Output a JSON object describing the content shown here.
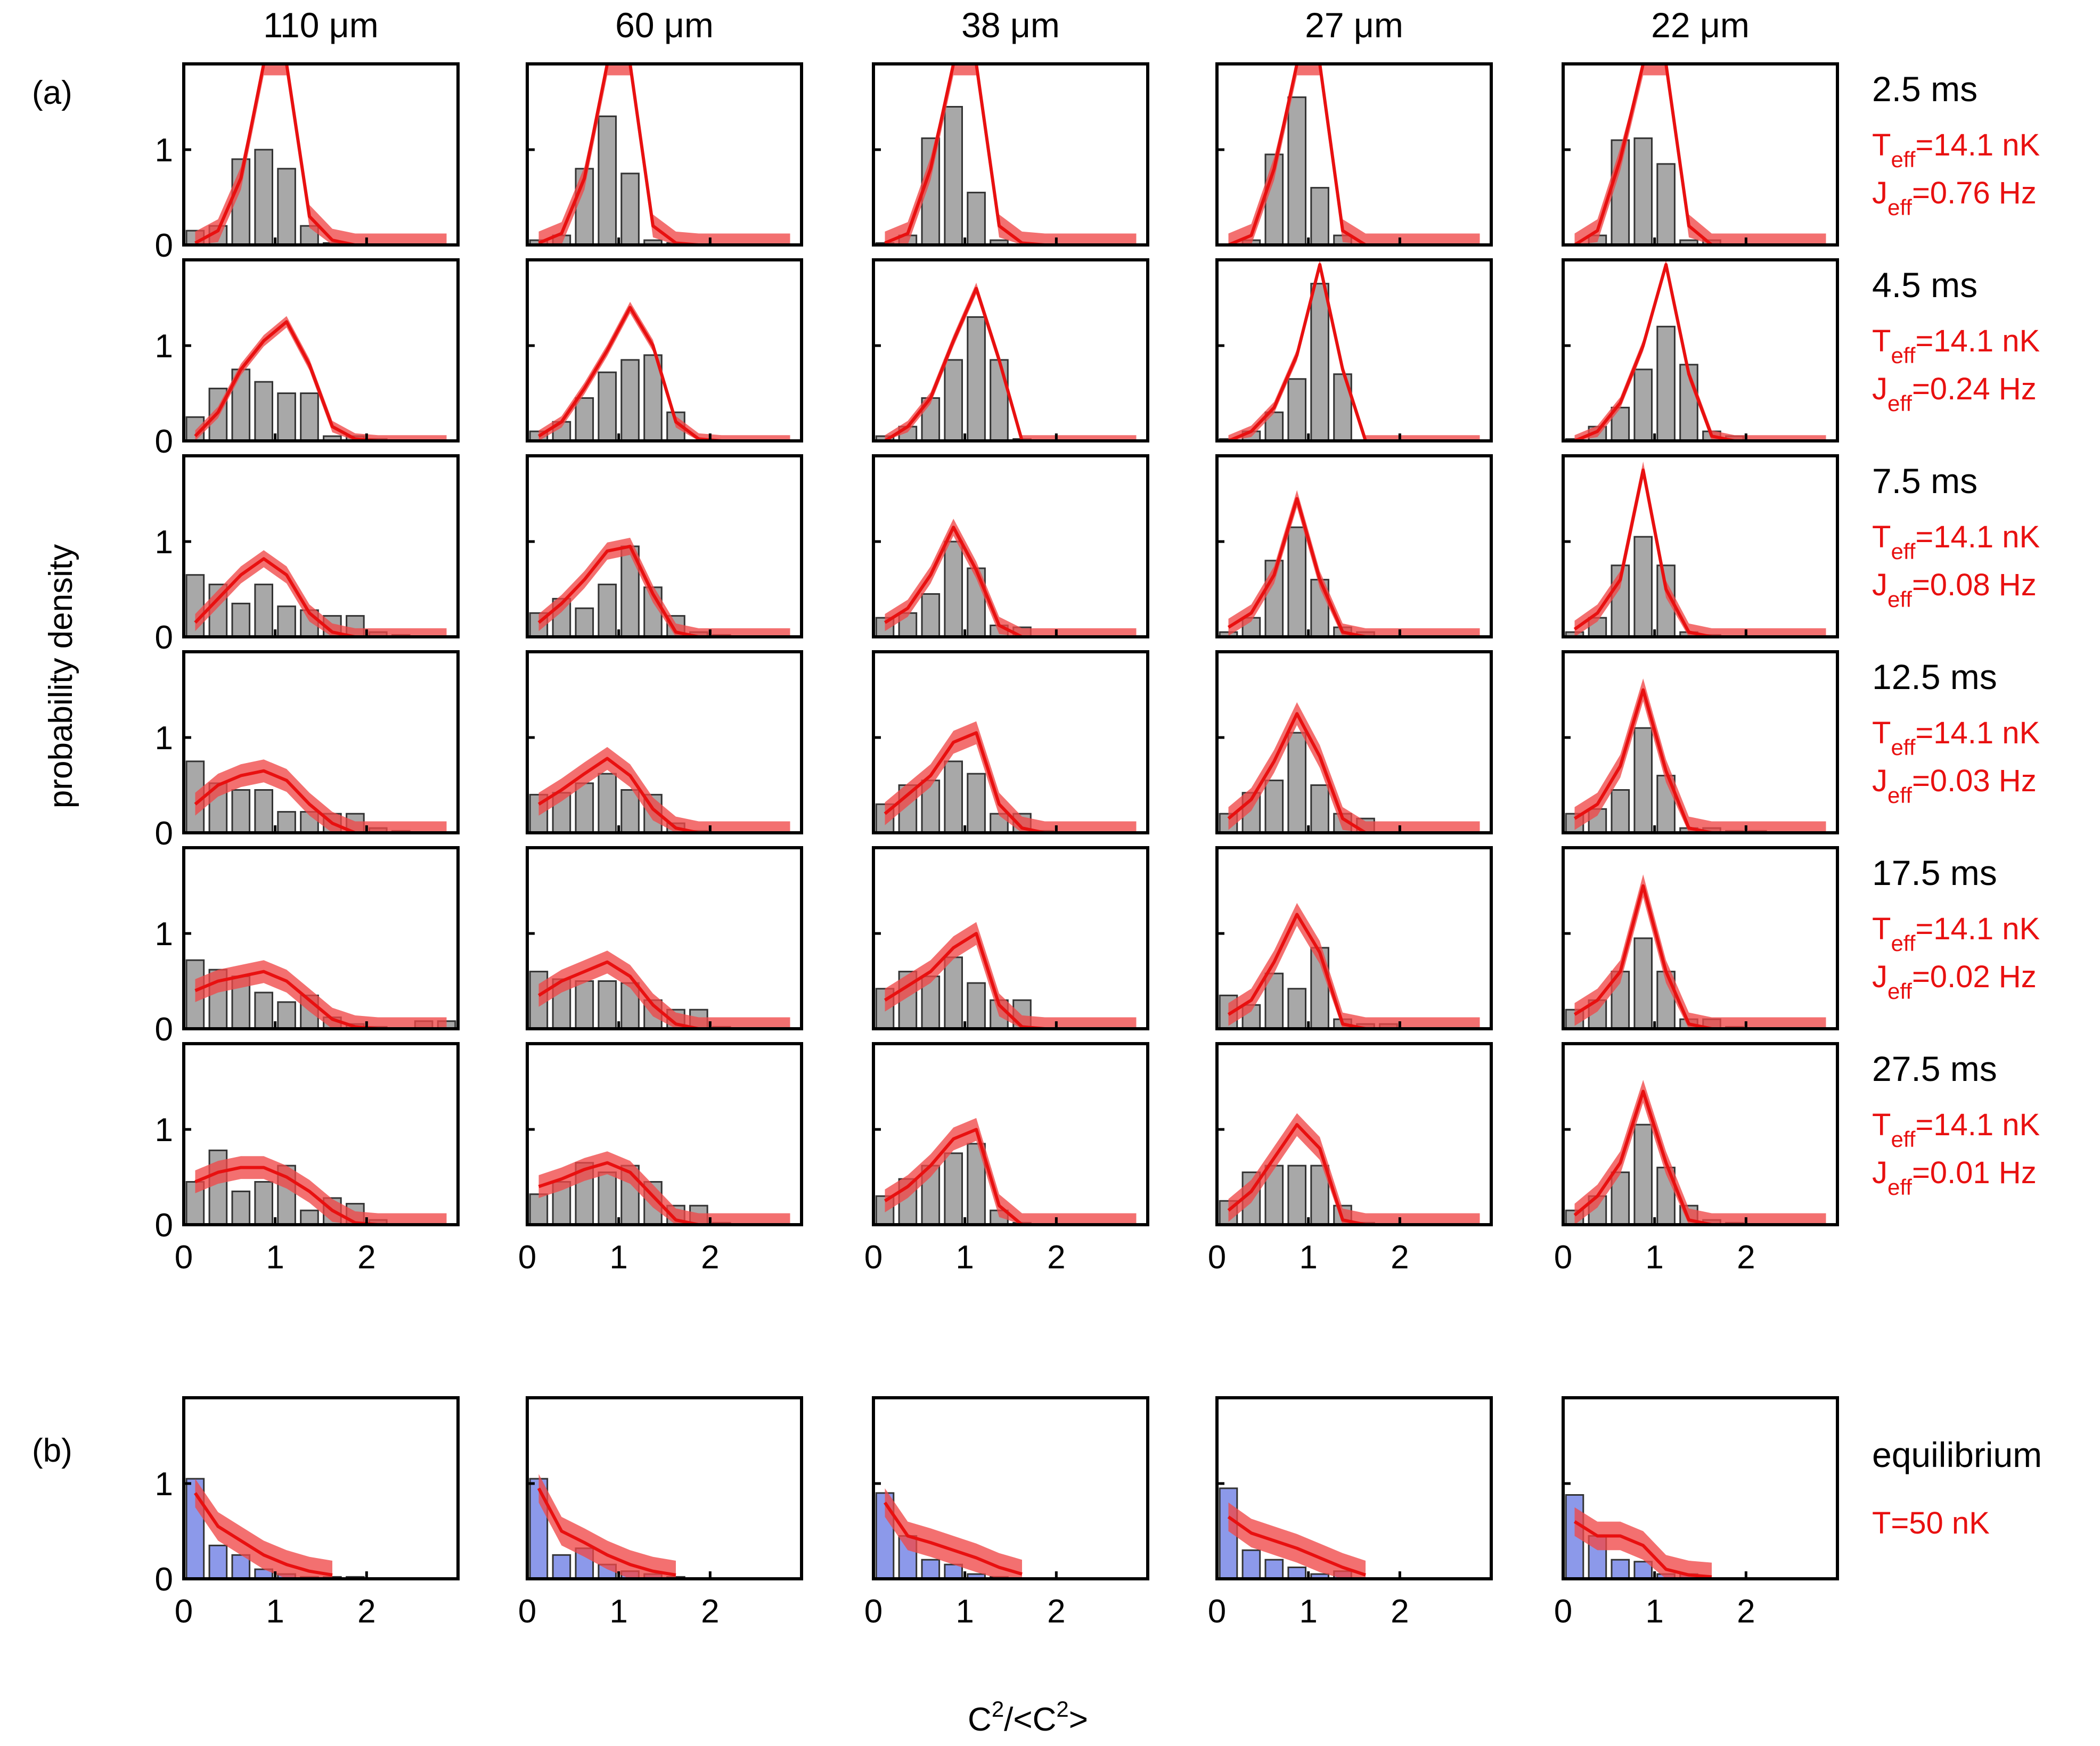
{
  "figure": {
    "panel_a_label": "(a)",
    "panel_b_label": "(b)",
    "y_label": "probability density",
    "x_label_main": "C",
    "x_label_sup1": "2",
    "x_label_mid": "/<C",
    "x_label_sup2": "2",
    "x_label_end": ">",
    "columns": [
      "110 μm",
      "60 μm",
      "38 μm",
      "27 μm",
      "22 μm"
    ],
    "rows": [
      {
        "time": "2.5 ms",
        "T_base": "T",
        "T_sub": "eff",
        "T_val": "=14.1 nK",
        "J_base": "J",
        "J_sub": "eff",
        "J_val": "=0.76 Hz"
      },
      {
        "time": "4.5 ms",
        "T_base": "T",
        "T_sub": "eff",
        "T_val": "=14.1 nK",
        "J_base": "J",
        "J_sub": "eff",
        "J_val": "=0.24 Hz"
      },
      {
        "time": "7.5 ms",
        "T_base": "T",
        "T_sub": "eff",
        "T_val": "=14.1 nK",
        "J_base": "J",
        "J_sub": "eff",
        "J_val": "=0.08 Hz"
      },
      {
        "time": "12.5 ms",
        "T_base": "T",
        "T_sub": "eff",
        "T_val": "=14.1 nK",
        "J_base": "J",
        "J_sub": "eff",
        "J_val": "=0.03 Hz"
      },
      {
        "time": "17.5 ms",
        "T_base": "T",
        "T_sub": "eff",
        "T_val": "=14.1 nK",
        "J_base": "J",
        "J_sub": "eff",
        "J_val": "=0.02 Hz"
      },
      {
        "time": "27.5 ms",
        "T_base": "T",
        "T_sub": "eff",
        "T_val": "=14.1 nK",
        "J_base": "J",
        "J_sub": "eff",
        "J_val": "=0.01 Hz"
      }
    ],
    "equilibrium": {
      "label": "equilibrium",
      "T_label": "T=50 nK"
    }
  },
  "chart_data": {
    "type": "bar",
    "description_units": "histograms of C^2/<C^2> (probability density) with red theory curves and uncertainty bands",
    "x_bin_centers": [
      0.125,
      0.375,
      0.625,
      0.875,
      1.125,
      1.375,
      1.625,
      1.875,
      2.125,
      2.375,
      2.625,
      2.875
    ],
    "x_ticks": [
      0,
      1,
      2
    ],
    "y_ticks": [
      0,
      1
    ],
    "xlim": [
      0,
      3
    ],
    "ylim": [
      0,
      1.9
    ],
    "xlabel": "C2/<C2>",
    "ylabel": "probability density",
    "colors": {
      "histogram_a": "#a8a8a8",
      "histogram_b": "#8c99ea",
      "curve": "#e81010",
      "band": "#f04848"
    },
    "panel_a": [
      [
        {
          "bars": [
            0.15,
            0.2,
            0.9,
            1.0,
            0.8,
            0.2,
            0.02,
            0,
            0,
            0,
            0,
            0
          ],
          "curve": [
            0.02,
            0.15,
            0.7,
            1.9,
            1.9,
            0.3,
            0.05,
            0,
            0,
            0,
            0,
            0
          ],
          "band": 0.12
        },
        {
          "bars": [
            0.05,
            0.1,
            0.8,
            1.35,
            0.75,
            0.05,
            0.02,
            0,
            0,
            0,
            0,
            0
          ],
          "curve": [
            0.02,
            0.12,
            0.7,
            1.9,
            1.9,
            0.2,
            0.02,
            0,
            0,
            0,
            0,
            0
          ],
          "band": 0.12
        },
        {
          "bars": [
            0.02,
            0.1,
            1.12,
            1.45,
            0.55,
            0.05,
            0,
            0,
            0,
            0,
            0,
            0
          ],
          "curve": [
            0.02,
            0.12,
            0.8,
            1.9,
            1.9,
            0.2,
            0.02,
            0,
            0,
            0,
            0,
            0
          ],
          "band": 0.12
        },
        {
          "bars": [
            0,
            0.05,
            0.95,
            1.55,
            0.6,
            0.1,
            0,
            0,
            0,
            0,
            0,
            0
          ],
          "curve": [
            0,
            0.1,
            0.8,
            1.9,
            1.9,
            0.15,
            0,
            0,
            0,
            0,
            0,
            0
          ],
          "band": 0.12
        },
        {
          "bars": [
            0,
            0.1,
            1.1,
            1.12,
            0.85,
            0.05,
            0.05,
            0,
            0,
            0,
            0,
            0
          ],
          "curve": [
            0,
            0.15,
            0.9,
            1.9,
            1.9,
            0.2,
            0,
            0,
            0,
            0,
            0,
            0
          ],
          "band": 0.12
        }
      ],
      [
        {
          "bars": [
            0.25,
            0.55,
            0.75,
            0.62,
            0.5,
            0.5,
            0.05,
            0.05,
            0.02,
            0,
            0,
            0
          ],
          "curve": [
            0.05,
            0.3,
            0.75,
            1.05,
            1.25,
            0.8,
            0.15,
            0.02,
            0,
            0,
            0,
            0
          ],
          "band": 0.06
        },
        {
          "bars": [
            0.1,
            0.2,
            0.45,
            0.72,
            0.85,
            0.9,
            0.3,
            0,
            0,
            0,
            0,
            0
          ],
          "curve": [
            0.05,
            0.2,
            0.55,
            0.95,
            1.4,
            1.0,
            0.2,
            0.02,
            0,
            0,
            0,
            0
          ],
          "band": 0.06
        },
        {
          "bars": [
            0.05,
            0.15,
            0.45,
            0.85,
            1.3,
            0.85,
            0.02,
            0,
            0,
            0,
            0,
            0
          ],
          "curve": [
            0,
            0.15,
            0.45,
            1.05,
            1.6,
            0.85,
            0,
            0,
            0,
            0,
            0,
            0
          ],
          "band": 0.06
        },
        {
          "bars": [
            0.02,
            0.1,
            0.3,
            0.65,
            1.65,
            0.7,
            0,
            0,
            0,
            0,
            0,
            0
          ],
          "curve": [
            0,
            0.1,
            0.35,
            0.9,
            1.85,
            0.75,
            0,
            0,
            0,
            0,
            0,
            0
          ],
          "band": 0.06
        },
        {
          "bars": [
            0.02,
            0.15,
            0.35,
            0.75,
            1.2,
            0.8,
            0.1,
            0.05,
            0,
            0,
            0,
            0
          ],
          "curve": [
            0,
            0.1,
            0.4,
            1.0,
            1.85,
            0.7,
            0.05,
            0,
            0,
            0,
            0,
            0
          ],
          "band": 0.06
        }
      ],
      [
        {
          "bars": [
            0.65,
            0.55,
            0.35,
            0.55,
            0.32,
            0.28,
            0.22,
            0.22,
            0.05,
            0.02,
            0,
            0
          ],
          "curve": [
            0.15,
            0.4,
            0.65,
            0.82,
            0.65,
            0.25,
            0.05,
            0,
            0,
            0,
            0,
            0
          ],
          "band": 0.09
        },
        {
          "bars": [
            0.25,
            0.4,
            0.3,
            0.55,
            0.95,
            0.52,
            0.22,
            0.05,
            0.02,
            0,
            0,
            0
          ],
          "curve": [
            0.15,
            0.35,
            0.6,
            0.9,
            0.95,
            0.45,
            0.05,
            0,
            0,
            0,
            0,
            0
          ],
          "band": 0.09
        },
        {
          "bars": [
            0.2,
            0.25,
            0.45,
            1.0,
            0.72,
            0.12,
            0.1,
            0,
            0,
            0,
            0,
            0
          ],
          "curve": [
            0.15,
            0.3,
            0.65,
            1.15,
            0.7,
            0.12,
            0,
            0,
            0,
            0,
            0,
            0
          ],
          "band": 0.09
        },
        {
          "bars": [
            0.05,
            0.2,
            0.8,
            1.15,
            0.6,
            0.1,
            0.05,
            0,
            0,
            0,
            0,
            0
          ],
          "curve": [
            0.1,
            0.25,
            0.65,
            1.45,
            0.6,
            0.05,
            0,
            0,
            0,
            0,
            0,
            0
          ],
          "band": 0.09
        },
        {
          "bars": [
            0.05,
            0.2,
            0.75,
            1.05,
            0.75,
            0.05,
            0.02,
            0,
            0,
            0,
            0,
            0
          ],
          "curve": [
            0.08,
            0.25,
            0.6,
            1.75,
            0.5,
            0.05,
            0,
            0,
            0,
            0,
            0,
            0
          ],
          "band": 0.09
        }
      ],
      [
        {
          "bars": [
            0.75,
            0.52,
            0.45,
            0.45,
            0.22,
            0.22,
            0.2,
            0.2,
            0.05,
            0.02,
            0,
            0
          ],
          "curve": [
            0.3,
            0.5,
            0.6,
            0.65,
            0.55,
            0.3,
            0.1,
            0,
            0,
            0,
            0,
            0
          ],
          "band": 0.12
        },
        {
          "bars": [
            0.4,
            0.42,
            0.52,
            0.62,
            0.45,
            0.4,
            0.1,
            0.02,
            0,
            0,
            0,
            0
          ],
          "curve": [
            0.3,
            0.45,
            0.62,
            0.78,
            0.6,
            0.25,
            0.05,
            0,
            0,
            0,
            0,
            0
          ],
          "band": 0.12
        },
        {
          "bars": [
            0.3,
            0.5,
            0.55,
            0.75,
            0.62,
            0.2,
            0.2,
            0.02,
            0,
            0,
            0,
            0
          ],
          "curve": [
            0.2,
            0.4,
            0.6,
            0.95,
            1.05,
            0.3,
            0.05,
            0,
            0,
            0,
            0,
            0
          ],
          "band": 0.12
        },
        {
          "bars": [
            0.2,
            0.42,
            0.55,
            1.05,
            0.5,
            0.2,
            0.15,
            0,
            0,
            0,
            0,
            0
          ],
          "curve": [
            0.15,
            0.35,
            0.75,
            1.25,
            0.8,
            0.15,
            0,
            0,
            0,
            0,
            0,
            0
          ],
          "band": 0.12
        },
        {
          "bars": [
            0.2,
            0.25,
            0.45,
            1.1,
            0.6,
            0.05,
            0.05,
            0.02,
            0.02,
            0,
            0,
            0
          ],
          "curve": [
            0.15,
            0.3,
            0.7,
            1.5,
            0.65,
            0.05,
            0,
            0,
            0,
            0,
            0,
            0
          ],
          "band": 0.12
        }
      ],
      [
        {
          "bars": [
            0.72,
            0.62,
            0.55,
            0.38,
            0.28,
            0.35,
            0.12,
            0.05,
            0.02,
            0,
            0.08,
            0.08
          ],
          "curve": [
            0.4,
            0.5,
            0.55,
            0.6,
            0.5,
            0.3,
            0.1,
            0.02,
            0,
            0,
            0,
            0
          ],
          "band": 0.12
        },
        {
          "bars": [
            0.6,
            0.52,
            0.5,
            0.5,
            0.48,
            0.3,
            0.2,
            0.2,
            0.02,
            0,
            0,
            0
          ],
          "curve": [
            0.35,
            0.5,
            0.6,
            0.7,
            0.55,
            0.25,
            0.05,
            0,
            0,
            0,
            0,
            0
          ],
          "band": 0.12
        },
        {
          "bars": [
            0.42,
            0.6,
            0.55,
            0.75,
            0.48,
            0.3,
            0.3,
            0,
            0,
            0,
            0,
            0
          ],
          "curve": [
            0.3,
            0.45,
            0.6,
            0.85,
            1.0,
            0.25,
            0.02,
            0,
            0,
            0,
            0,
            0
          ],
          "band": 0.12
        },
        {
          "bars": [
            0.35,
            0.25,
            0.58,
            0.42,
            0.85,
            0.1,
            0.05,
            0.05,
            0,
            0,
            0,
            0
          ],
          "curve": [
            0.15,
            0.3,
            0.7,
            1.2,
            0.8,
            0.05,
            0,
            0,
            0,
            0,
            0,
            0
          ],
          "band": 0.12
        },
        {
          "bars": [
            0.2,
            0.3,
            0.6,
            0.95,
            0.6,
            0.1,
            0.1,
            0.02,
            0,
            0,
            0,
            0
          ],
          "curve": [
            0.15,
            0.3,
            0.6,
            1.5,
            0.6,
            0.05,
            0,
            0,
            0,
            0,
            0,
            0
          ],
          "band": 0.12
        }
      ],
      [
        {
          "bars": [
            0.45,
            0.78,
            0.35,
            0.45,
            0.62,
            0.15,
            0.28,
            0.22,
            0.05,
            0,
            0,
            0
          ],
          "curve": [
            0.45,
            0.55,
            0.6,
            0.6,
            0.5,
            0.35,
            0.15,
            0.02,
            0,
            0,
            0,
            0
          ],
          "band": 0.12
        },
        {
          "bars": [
            0.32,
            0.45,
            0.65,
            0.55,
            0.62,
            0.45,
            0.2,
            0.2,
            0.02,
            0,
            0,
            0
          ],
          "curve": [
            0.4,
            0.48,
            0.58,
            0.65,
            0.55,
            0.3,
            0.05,
            0,
            0,
            0,
            0,
            0
          ],
          "band": 0.12
        },
        {
          "bars": [
            0.3,
            0.48,
            0.62,
            0.75,
            0.85,
            0.15,
            0.02,
            0,
            0,
            0,
            0,
            0
          ],
          "curve": [
            0.25,
            0.4,
            0.62,
            0.9,
            1.0,
            0.2,
            0,
            0,
            0,
            0,
            0,
            0
          ],
          "band": 0.12
        },
        {
          "bars": [
            0.25,
            0.55,
            0.62,
            0.62,
            0.62,
            0.2,
            0.02,
            0,
            0,
            0,
            0,
            0
          ],
          "curve": [
            0.15,
            0.35,
            0.7,
            1.05,
            0.8,
            0.05,
            0,
            0,
            0,
            0,
            0,
            0
          ],
          "band": 0.12
        },
        {
          "bars": [
            0.15,
            0.3,
            0.55,
            1.05,
            0.6,
            0.2,
            0.05,
            0.02,
            0,
            0,
            0,
            0
          ],
          "curve": [
            0.1,
            0.3,
            0.65,
            1.4,
            0.65,
            0.05,
            0,
            0,
            0,
            0,
            0,
            0
          ],
          "band": 0.12
        }
      ]
    ],
    "panel_b": [
      {
        "bars": [
          1.05,
          0.35,
          0.25,
          0.1,
          0.05,
          0.02,
          0.02,
          0.02,
          0,
          0,
          0,
          0
        ],
        "curve": [
          0.9,
          0.55,
          0.4,
          0.25,
          0.15,
          0.08,
          0.04
        ],
        "band": 0.15
      },
      {
        "bars": [
          1.05,
          0.25,
          0.32,
          0.15,
          0.08,
          0.05,
          0.02,
          0,
          0,
          0,
          0,
          0
        ],
        "curve": [
          0.95,
          0.5,
          0.38,
          0.25,
          0.15,
          0.08,
          0.04
        ],
        "band": 0.15
      },
      {
        "bars": [
          0.9,
          0.45,
          0.2,
          0.15,
          0.05,
          0.02,
          0,
          0,
          0,
          0,
          0,
          0
        ],
        "curve": [
          0.8,
          0.45,
          0.38,
          0.3,
          0.22,
          0.12,
          0.05
        ],
        "band": 0.15
      },
      {
        "bars": [
          0.95,
          0.3,
          0.2,
          0.12,
          0.05,
          0.08,
          0,
          0,
          0,
          0,
          0,
          0
        ],
        "curve": [
          0.65,
          0.48,
          0.4,
          0.32,
          0.22,
          0.12,
          0.04
        ],
        "band": 0.15
      },
      {
        "bars": [
          0.88,
          0.45,
          0.2,
          0.18,
          0.05,
          0.05,
          0,
          0,
          0,
          0,
          0,
          0
        ],
        "curve": [
          0.6,
          0.45,
          0.45,
          0.35,
          0.1,
          0.04,
          0.02
        ],
        "band": 0.15
      }
    ]
  }
}
